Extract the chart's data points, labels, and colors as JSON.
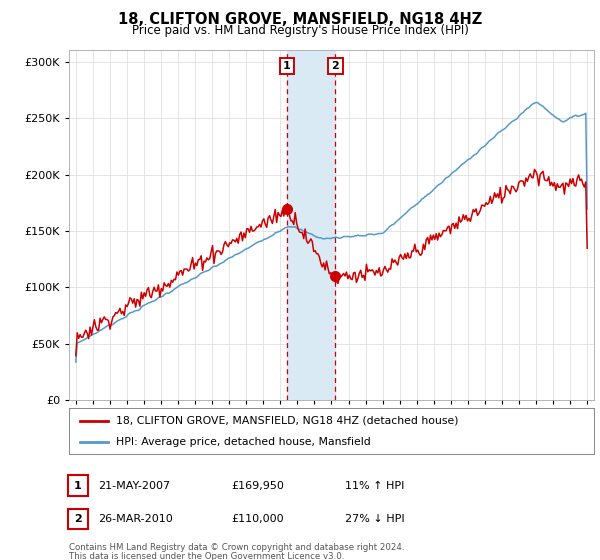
{
  "title": "18, CLIFTON GROVE, MANSFIELD, NG18 4HZ",
  "subtitle": "Price paid vs. HM Land Registry's House Price Index (HPI)",
  "legend_line1": "18, CLIFTON GROVE, MANSFIELD, NG18 4HZ (detached house)",
  "legend_line2": "HPI: Average price, detached house, Mansfield",
  "transaction1_date": "21-MAY-2007",
  "transaction1_price": "£169,950",
  "transaction1_hpi": "11% ↑ HPI",
  "transaction2_date": "26-MAR-2010",
  "transaction2_price": "£110,000",
  "transaction2_hpi": "27% ↓ HPI",
  "footnote1": "Contains HM Land Registry data © Crown copyright and database right 2024.",
  "footnote2": "This data is licensed under the Open Government Licence v3.0.",
  "red_color": "#cc0000",
  "blue_color": "#5599cc",
  "shading_color": "#daeaf5",
  "marker1_x": 2007.38,
  "marker2_x": 2010.23,
  "ylim_min": 0,
  "ylim_max": 310000,
  "xlim_min": 1994.6,
  "xlim_max": 2025.4,
  "p1": 169950,
  "p2": 110000,
  "t1": 2007.38,
  "t2": 2010.23
}
